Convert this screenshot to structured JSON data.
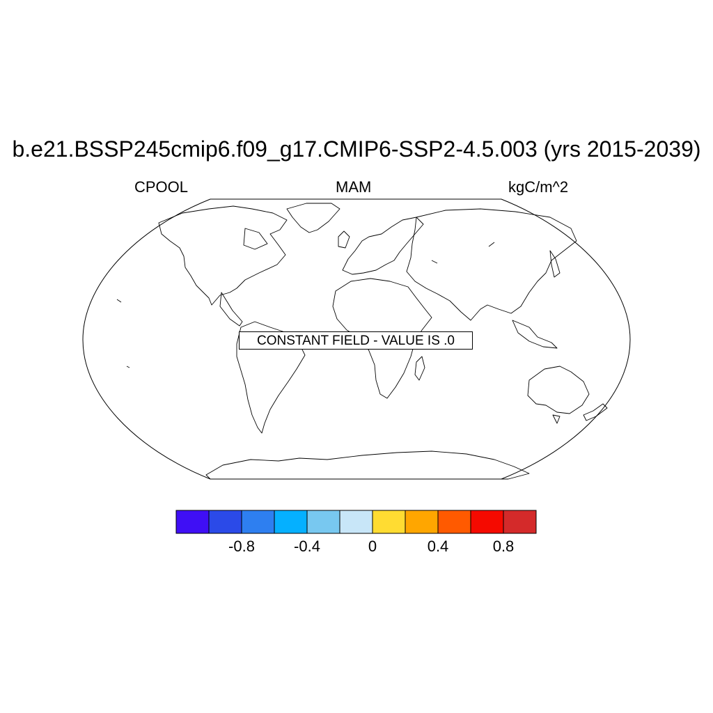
{
  "title": "b.e21.BSSP245cmip6.f09_g17.CMIP6-SSP2-4.5.003 (yrs 2015-2039)",
  "left_label": "CPOOL",
  "center_label": "MAM",
  "right_label": "kgC/m^2",
  "annotation": "CONSTANT FIELD - VALUE IS .0",
  "colorbar": {
    "colors": [
      "#3f0ff5",
      "#2b4ae8",
      "#2e7ff0",
      "#05b0ff",
      "#78c8f0",
      "#c8e6f8",
      "#ffdc32",
      "#ffa600",
      "#ff5a00",
      "#f50a00",
      "#d42a2a"
    ],
    "tick_labels": [
      "-0.8",
      "-0.4",
      "0",
      "0.4",
      "0.8"
    ],
    "tick_values": [
      -0.8,
      -0.4,
      0,
      0.4,
      0.8
    ]
  },
  "map": {
    "projection": "Robinson",
    "field": "constant",
    "value": 0.0
  }
}
